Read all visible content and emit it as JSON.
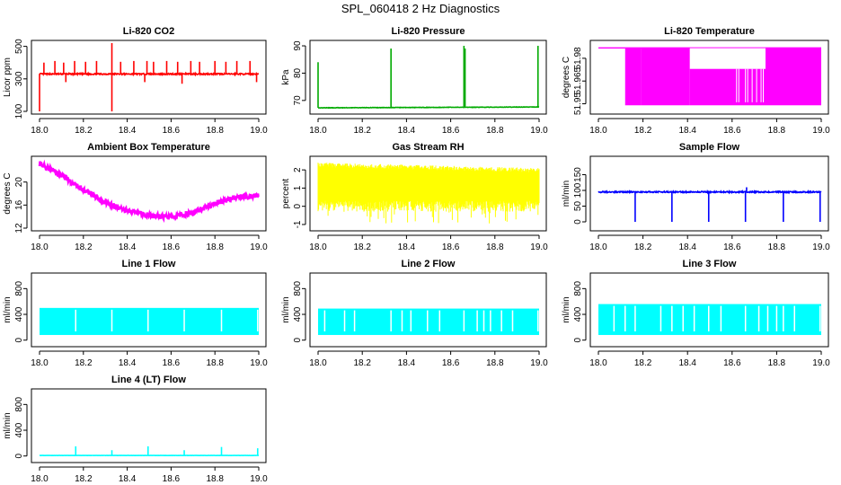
{
  "page": {
    "title": "SPL_060418  2 Hz Diagnostics"
  },
  "chart_data": [
    {
      "id": "co2",
      "type": "line",
      "title": "Li-820 CO2",
      "xlabel": "",
      "ylabel": "Licor ppm",
      "xlim": [
        18.0,
        19.0
      ],
      "ylim": [
        100,
        520
      ],
      "x_ticks": [
        18.0,
        18.2,
        18.4,
        18.6,
        18.8,
        19.0
      ],
      "x_tick_labels": [
        "18.0",
        "18.2",
        "18.4",
        "18.6",
        "18.8",
        "19.0"
      ],
      "y_ticks": [
        100,
        300,
        500
      ],
      "y_tick_labels": [
        "100",
        "300",
        "500"
      ],
      "color": "#ff0000",
      "grid": false,
      "legend": "none",
      "series": [
        {
          "pattern": "baseline_spikes",
          "base": 330,
          "noise": 8,
          "spikes": [
            [
              18.02,
              400
            ],
            [
              18.07,
              410
            ],
            [
              18.11,
              400
            ],
            [
              18.16,
              410
            ],
            [
              18.21,
              405
            ],
            [
              18.26,
              410
            ],
            [
              18.33,
              520
            ],
            [
              18.33,
              100
            ],
            [
              18.37,
              405
            ],
            [
              18.43,
              410
            ],
            [
              18.49,
              410
            ],
            [
              18.52,
              405
            ],
            [
              18.58,
              410
            ],
            [
              18.63,
              405
            ],
            [
              18.69,
              410
            ],
            [
              18.73,
              405
            ],
            [
              18.8,
              410
            ],
            [
              18.85,
              405
            ],
            [
              18.9,
              410
            ],
            [
              18.96,
              410
            ],
            [
              18.12,
              280
            ],
            [
              18.48,
              280
            ],
            [
              18.65,
              270
            ],
            [
              18.99,
              280
            ],
            [
              18.0,
              100
            ]
          ]
        }
      ]
    },
    {
      "id": "pressure",
      "type": "line",
      "title": "Li-820 Pressure",
      "xlabel": "",
      "ylabel": "kPa",
      "xlim": [
        18.0,
        19.0
      ],
      "ylim": [
        66,
        91
      ],
      "x_ticks": [
        18.0,
        18.2,
        18.4,
        18.6,
        18.8,
        19.0
      ],
      "x_tick_labels": [
        "18.0",
        "18.2",
        "18.4",
        "18.6",
        "18.8",
        "19.0"
      ],
      "y_ticks": [
        70,
        80,
        90
      ],
      "y_tick_labels": [
        "70",
        "80",
        "90"
      ],
      "color": "#00aa00",
      "grid": false,
      "legend": "none",
      "series": [
        {
          "pattern": "baseline_spikes",
          "base": 67.3,
          "noise": 0.15,
          "drift": 0.3,
          "spikes": [
            [
              18.0,
              84
            ],
            [
              18.33,
              89
            ],
            [
              18.66,
              90
            ],
            [
              18.665,
              89
            ],
            [
              18.995,
              90
            ]
          ]
        }
      ]
    },
    {
      "id": "temperature",
      "type": "line",
      "title": "Li-820 Temperature",
      "xlabel": "",
      "ylabel": "degrees C",
      "xlim": [
        18.0,
        19.0
      ],
      "ylim": [
        51.945,
        51.99
      ],
      "x_ticks": [
        18.0,
        18.2,
        18.4,
        18.6,
        18.8,
        19.0
      ],
      "x_tick_labels": [
        "18.0",
        "18.2",
        "18.4",
        "18.6",
        "18.8",
        "19.0"
      ],
      "y_ticks": [
        51.95,
        51.965,
        51.98
      ],
      "y_tick_labels": [
        "51.95",
        "51.965",
        "51.98"
      ],
      "color": "#ff00ff",
      "grid": false,
      "legend": "none",
      "series": [
        {
          "pattern": "quantized_bands",
          "bands": [
            [
              18.0,
              18.12,
              51.987,
              51.987
            ],
            [
              18.12,
              18.19,
              51.949,
              51.987
            ],
            [
              18.19,
              18.41,
              51.949,
              51.987
            ],
            [
              18.41,
              18.75,
              51.949,
              51.973
            ],
            [
              18.75,
              19.0,
              51.949,
              51.987
            ]
          ]
        }
      ]
    },
    {
      "id": "ambient",
      "type": "line",
      "title": "Ambient Box Temperature",
      "xlabel": "",
      "ylabel": "degrees C",
      "xlim": [
        18.0,
        19.0
      ],
      "ylim": [
        12,
        24
      ],
      "x_ticks": [
        18.0,
        18.2,
        18.4,
        18.6,
        18.8,
        19.0
      ],
      "x_tick_labels": [
        "18.0",
        "18.2",
        "18.4",
        "18.6",
        "18.8",
        "19.0"
      ],
      "y_ticks": [
        12,
        16,
        20
      ],
      "y_tick_labels": [
        "12",
        "16",
        "20"
      ],
      "color": "#ff00ff",
      "grid": false,
      "legend": "none",
      "series": [
        {
          "pattern": "noisy_curve",
          "noise": 0.9,
          "points": [
            [
              18.0,
              23.2
            ],
            [
              18.1,
              21.2
            ],
            [
              18.2,
              18.6
            ],
            [
              18.3,
              16.5
            ],
            [
              18.4,
              15.0
            ],
            [
              18.5,
              14.2
            ],
            [
              18.6,
              13.9
            ],
            [
              18.7,
              14.7
            ],
            [
              18.8,
              16.3
            ],
            [
              18.9,
              17.4
            ],
            [
              19.0,
              17.6
            ]
          ]
        }
      ]
    },
    {
      "id": "rh",
      "type": "area",
      "title": "Gas Stream RH",
      "xlabel": "",
      "ylabel": "percent",
      "xlim": [
        18.0,
        19.0
      ],
      "ylim": [
        -1.2,
        2.6
      ],
      "x_ticks": [
        18.0,
        18.2,
        18.4,
        18.6,
        18.8,
        19.0
      ],
      "x_tick_labels": [
        "18.0",
        "18.2",
        "18.4",
        "18.6",
        "18.8",
        "19.0"
      ],
      "y_ticks": [
        -1,
        0,
        1,
        2
      ],
      "y_tick_labels": [
        "-1",
        "0",
        "1",
        "2"
      ],
      "color": "#ffff00",
      "grid": false,
      "legend": "none",
      "series": [
        {
          "pattern": "noisy_band",
          "upper": [
            [
              18.0,
              2.4
            ],
            [
              19.0,
              2.1
            ]
          ],
          "lower": [
            [
              18.0,
              0.3
            ],
            [
              19.0,
              0.3
            ]
          ],
          "spike_down_to": -1.0
        }
      ]
    },
    {
      "id": "sample",
      "type": "line",
      "title": "Sample Flow",
      "xlabel": "",
      "ylabel": "ml/min",
      "xlim": [
        18.0,
        19.0
      ],
      "ylim": [
        -20,
        200
      ],
      "x_ticks": [
        18.0,
        18.2,
        18.4,
        18.6,
        18.8,
        19.0
      ],
      "x_tick_labels": [
        "18.0",
        "18.2",
        "18.4",
        "18.6",
        "18.8",
        "19.0"
      ],
      "y_ticks": [
        0,
        50,
        100,
        150
      ],
      "y_tick_labels": [
        "0",
        "50",
        "100",
        "150"
      ],
      "color": "#0000ff",
      "grid": false,
      "legend": "none",
      "series": [
        {
          "pattern": "baseline_spikes",
          "base": 95,
          "noise": 4,
          "spikes": [
            [
              18.165,
              0
            ],
            [
              18.33,
              0
            ],
            [
              18.495,
              0
            ],
            [
              18.66,
              0
            ],
            [
              18.665,
              110
            ],
            [
              18.83,
              0
            ],
            [
              18.995,
              0
            ]
          ]
        }
      ]
    },
    {
      "id": "line1",
      "type": "area",
      "title": "Line 1 Flow",
      "xlabel": "",
      "ylabel": "ml/min",
      "xlim": [
        18.0,
        19.0
      ],
      "ylim": [
        -60,
        1000
      ],
      "x_ticks": [
        18.0,
        18.2,
        18.4,
        18.6,
        18.8,
        19.0
      ],
      "x_tick_labels": [
        "18.0",
        "18.2",
        "18.4",
        "18.6",
        "18.8",
        "19.0"
      ],
      "y_ticks": [
        0,
        400,
        800
      ],
      "y_tick_labels": [
        "0",
        "400",
        "800"
      ],
      "color": "#00ffff",
      "grid": false,
      "legend": "none",
      "series": [
        {
          "pattern": "flow_band",
          "upper": 500,
          "lower": 80,
          "gaps": [
            18.165,
            18.33,
            18.495,
            18.66,
            18.83,
            18.995
          ]
        }
      ]
    },
    {
      "id": "line2",
      "type": "area",
      "title": "Line 2 Flow",
      "xlabel": "",
      "ylabel": "ml/min",
      "xlim": [
        18.0,
        19.0
      ],
      "ylim": [
        -60,
        1000
      ],
      "x_ticks": [
        18.0,
        18.2,
        18.4,
        18.6,
        18.8,
        19.0
      ],
      "x_tick_labels": [
        "18.0",
        "18.2",
        "18.4",
        "18.6",
        "18.8",
        "19.0"
      ],
      "y_ticks": [
        0,
        400,
        800
      ],
      "y_tick_labels": [
        "0",
        "400",
        "800"
      ],
      "color": "#00ffff",
      "grid": false,
      "legend": "none",
      "series": [
        {
          "pattern": "flow_band",
          "upper": 490,
          "lower": 80,
          "gaps": [
            18.03,
            18.12,
            18.165,
            18.33,
            18.38,
            18.42,
            18.495,
            18.55,
            18.66,
            18.72,
            18.75,
            18.78,
            18.83,
            18.88,
            18.995
          ]
        }
      ]
    },
    {
      "id": "line3",
      "type": "area",
      "title": "Line 3 Flow",
      "xlabel": "",
      "ylabel": "ml/min",
      "xlim": [
        18.0,
        19.0
      ],
      "ylim": [
        -60,
        1000
      ],
      "x_ticks": [
        18.0,
        18.2,
        18.4,
        18.6,
        18.8,
        19.0
      ],
      "x_tick_labels": [
        "18.0",
        "18.2",
        "18.4",
        "18.6",
        "18.8",
        "19.0"
      ],
      "y_ticks": [
        0,
        400,
        800
      ],
      "y_tick_labels": [
        "0",
        "400",
        "800"
      ],
      "color": "#00ffff",
      "grid": false,
      "legend": "none",
      "series": [
        {
          "pattern": "flow_band",
          "upper": 560,
          "lower": 80,
          "gaps": [
            18.07,
            18.12,
            18.165,
            18.28,
            18.33,
            18.38,
            18.43,
            18.495,
            18.55,
            18.66,
            18.72,
            18.76,
            18.8,
            18.83,
            18.88,
            18.995
          ]
        }
      ]
    },
    {
      "id": "line4",
      "type": "line",
      "title": "Line 4 (LT) Flow",
      "xlabel": "",
      "ylabel": "ml/min",
      "xlim": [
        18.0,
        19.0
      ],
      "ylim": [
        -60,
        1000
      ],
      "x_ticks": [
        18.0,
        18.2,
        18.4,
        18.6,
        18.8,
        19.0
      ],
      "x_tick_labels": [
        "18.0",
        "18.2",
        "18.4",
        "18.6",
        "18.8",
        "19.0"
      ],
      "y_ticks": [
        0,
        400,
        800
      ],
      "y_tick_labels": [
        "0",
        "400",
        "800"
      ],
      "color": "#00ffff",
      "grid": false,
      "legend": "none",
      "series": [
        {
          "pattern": "baseline_spikes",
          "base": 8,
          "noise": 3,
          "spikes": [
            [
              18.165,
              150
            ],
            [
              18.33,
              90
            ],
            [
              18.495,
              150
            ],
            [
              18.66,
              90
            ],
            [
              18.83,
              140
            ],
            [
              18.995,
              120
            ]
          ]
        }
      ]
    }
  ]
}
